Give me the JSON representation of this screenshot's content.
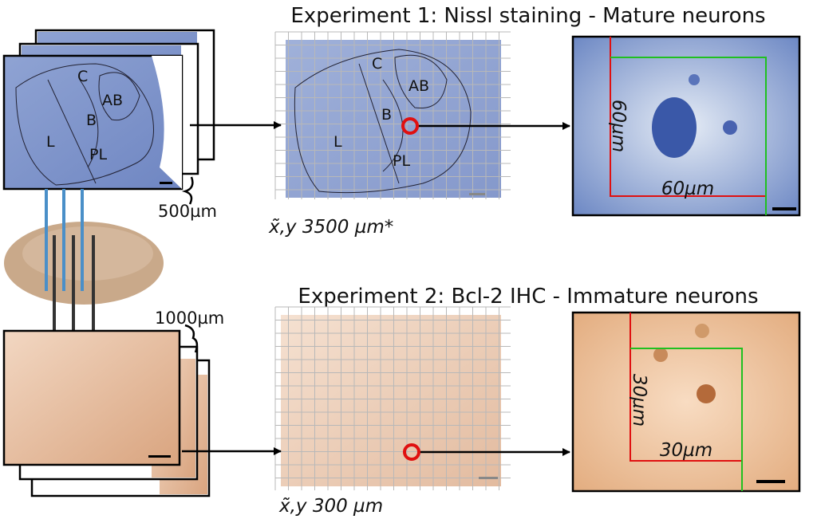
{
  "experiment1": {
    "title": "Experiment 1: Nissl staining - Mature neurons",
    "stack_scale": "500µm",
    "stack_regions": [
      "C",
      "AB",
      "B",
      "L",
      "PL"
    ],
    "grid_regions": [
      "C",
      "AB",
      "B",
      "L",
      "PL"
    ],
    "sampling": "x̃,y 3500 µm*",
    "frame_height": "60µm",
    "frame_width": "60µm"
  },
  "experiment2": {
    "title": "Experiment 2: Bcl-2 IHC - Immature neurons",
    "stack_scale": "1000µm",
    "sampling": "x̃,y 300 µm",
    "frame_height": "30µm",
    "frame_width": "30µm"
  }
}
